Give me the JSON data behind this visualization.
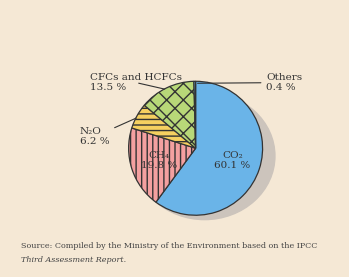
{
  "slices": [
    {
      "label": "CO₂",
      "pct_label": "60.1 %",
      "value": 60.1,
      "color": "#6ab4e8",
      "hatch": "",
      "edge_color": "#333333"
    },
    {
      "label": "CH₄",
      "pct_label": "19.8 %",
      "value": 19.8,
      "color": "#f4a0a0",
      "hatch": "|||",
      "edge_color": "#333333"
    },
    {
      "label": "N₂O",
      "pct_label": "6.2 %",
      "value": 6.2,
      "color": "#f5d060",
      "hatch": "---",
      "edge_color": "#333333"
    },
    {
      "label": "CFCs and HCFCs",
      "pct_label": "13.5 %",
      "value": 13.5,
      "color": "#b8d878",
      "hatch": "xx",
      "edge_color": "#333333"
    },
    {
      "label": "Others",
      "pct_label": "0.4 %",
      "value": 0.4,
      "color": "#6ab4e8",
      "hatch": "",
      "edge_color": "#333333"
    }
  ],
  "background_color": "#f5e8d5",
  "shadow_color": "#ccc4bc",
  "source_line1": "Source: Compiled by the Ministry of the Environment based on the IPCC",
  "source_line2": "Third Assessment Report.",
  "start_angle": 90,
  "font_family": "serif"
}
